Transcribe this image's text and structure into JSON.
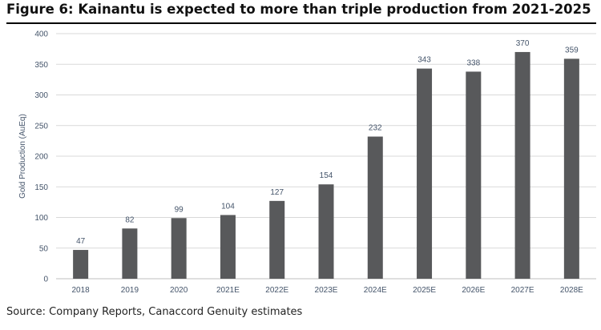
{
  "figure": {
    "title": "Figure 6: Kainantu is expected to more than triple production from 2021-2025",
    "source": "Source: Company Reports, Canaccord Genuity estimates"
  },
  "colors": {
    "bar": "#58595b",
    "grid": "#d9d9d9",
    "axis": "#bfbfbf",
    "label": "#44546a"
  },
  "chart_data": {
    "type": "bar",
    "title": "",
    "xlabel": "",
    "ylabel": "Gold Production (AuEq)",
    "categories": [
      "2018",
      "2019",
      "2020",
      "2021E",
      "2022E",
      "2023E",
      "2024E",
      "2025E",
      "2026E",
      "2027E",
      "2028E"
    ],
    "values": [
      47,
      82,
      99,
      104,
      127,
      154,
      232,
      343,
      338,
      370,
      359
    ],
    "ylim": [
      0,
      400
    ],
    "yticks": [
      0,
      50,
      100,
      150,
      200,
      250,
      300,
      350,
      400
    ],
    "grid": true,
    "legend": "none",
    "data_labels": true
  }
}
